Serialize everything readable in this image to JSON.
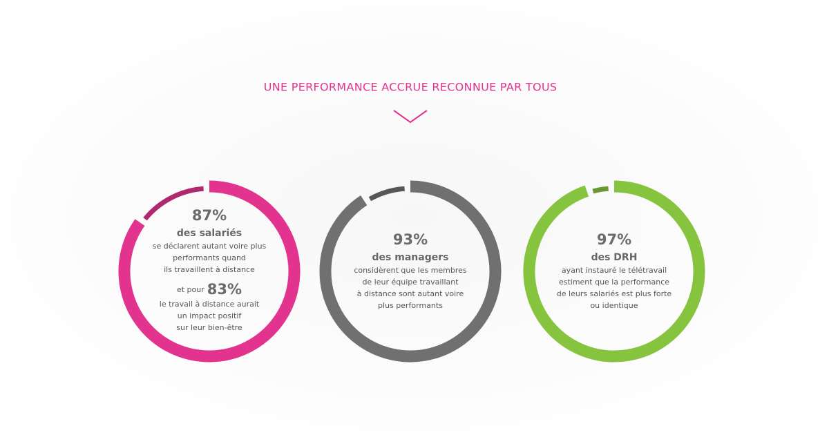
{
  "title": "UNE PERFORMANCE ACCRUE RECONNUE PAR TOUS",
  "rings": [
    {
      "value": 87,
      "value_label": "87%",
      "color": "#e2338f",
      "heading": "des salariés",
      "lines": [
        "se déclarent autant voire plus",
        "performants quand",
        "ils travaillent à distance"
      ],
      "second": {
        "prefix": "et pour",
        "value_label": "83%",
        "lines": [
          "le travail à distance aurait",
          "un impact positif",
          "sur leur bien-être"
        ]
      }
    },
    {
      "value": 93,
      "value_label": "93%",
      "color": "#707070",
      "heading": "des managers",
      "lines": [
        "considèrent que les membres",
        "de leur équipe travaillant",
        "à distance sont autant voire",
        "plus performants"
      ]
    },
    {
      "value": 97,
      "value_label": "97%",
      "color": "#86c440",
      "heading": "des DRH",
      "lines": [
        "ayant instauré le télétravail",
        "estiment que la performance",
        "de leurs salariés est plus forte",
        "ou identique"
      ]
    }
  ]
}
